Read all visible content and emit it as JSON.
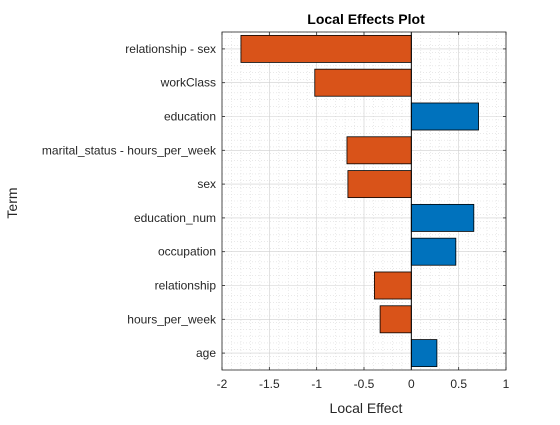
{
  "chart_data": {
    "type": "bar",
    "orientation": "horizontal",
    "title": "Local Effects Plot",
    "xlabel": "Local Effect",
    "ylabel": "Term",
    "xlim": [
      -2,
      1
    ],
    "xticks": [
      -2,
      -1.5,
      -1,
      -0.5,
      0,
      0.5,
      1
    ],
    "xtick_labels": [
      "-2",
      "-1.5",
      "-1",
      "-0.5",
      "0",
      "0.5",
      "1"
    ],
    "grid": "on",
    "minor_grid": "on",
    "categories": [
      "relationship - sex",
      "workClass",
      "education",
      "marital_status - hours_per_week",
      "sex",
      "education_num",
      "occupation",
      "relationship",
      "hours_per_week",
      "age"
    ],
    "values": [
      -1.8,
      -1.02,
      0.71,
      -0.68,
      -0.67,
      0.66,
      0.47,
      -0.39,
      -0.33,
      0.27
    ],
    "colors": {
      "positive": "#0072BD",
      "negative": "#D95319",
      "edge": "#000000",
      "axis": "#262626",
      "grid": "#dcdcdc"
    }
  }
}
